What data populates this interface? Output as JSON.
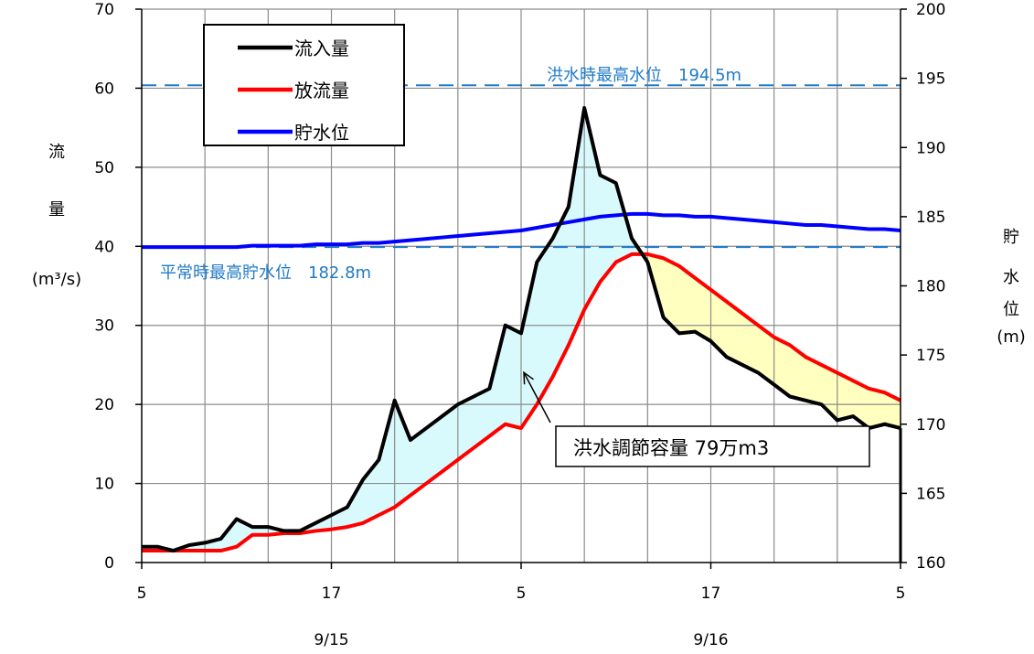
{
  "chart_data": {
    "type": "line",
    "x": [
      5,
      6,
      7,
      8,
      9,
      10,
      11,
      12,
      13,
      14,
      15,
      16,
      17,
      18,
      19,
      20,
      21,
      22,
      23,
      24,
      25,
      26,
      27,
      28,
      29,
      30,
      31,
      32,
      33,
      34,
      35,
      36,
      37,
      38,
      39,
      40,
      41,
      42,
      43,
      44,
      45,
      46,
      47,
      48,
      49,
      50,
      51,
      52,
      53
    ],
    "x_ticks": [
      5,
      17,
      29,
      41,
      53
    ],
    "x_tick_labels": [
      "5",
      "17",
      "5",
      "17",
      "5"
    ],
    "date_labels": [
      {
        "x": 17,
        "label": "9/15"
      },
      {
        "x": 41,
        "label": "9/16"
      }
    ],
    "xlim": [
      5,
      53
    ],
    "ylabel_left": [
      "流",
      "量",
      "(m³/s)"
    ],
    "ylabel_right": [
      "貯",
      "水",
      "位",
      "(m)"
    ],
    "ylim_left": [
      0,
      70
    ],
    "ylim_right": [
      160,
      200
    ],
    "yticks_left": [
      0,
      10,
      20,
      30,
      40,
      50,
      60,
      70
    ],
    "yticks_right": [
      160,
      165,
      170,
      175,
      180,
      185,
      190,
      195,
      200
    ],
    "grid": true,
    "legend_position": "top-left",
    "series": [
      {
        "name": "流入量",
        "axis": "left",
        "color": "#000000",
        "values": [
          2.0,
          2.0,
          1.5,
          2.2,
          2.5,
          3.0,
          5.5,
          4.5,
          4.5,
          4.0,
          4.0,
          5.0,
          6.0,
          7.0,
          10.5,
          13.0,
          20.5,
          15.5,
          17.0,
          18.5,
          20.0,
          21.0,
          22.0,
          30.0,
          29.0,
          38.0,
          41.0,
          45.0,
          57.5,
          49.0,
          48.0,
          41.0,
          38.0,
          31.0,
          29.0,
          29.2,
          28.0,
          26.0,
          25.0,
          24.0,
          22.5,
          21.0,
          20.5,
          20.0,
          18.0,
          18.5,
          17.0,
          17.5,
          17.0
        ]
      },
      {
        "name": "放流量",
        "axis": "left",
        "color": "#ff0000",
        "values": [
          1.5,
          1.5,
          1.5,
          1.5,
          1.5,
          1.5,
          2.0,
          3.5,
          3.5,
          3.7,
          3.7,
          4.0,
          4.2,
          4.5,
          5.0,
          6.0,
          7.0,
          8.5,
          10.0,
          11.5,
          13.0,
          14.5,
          16.0,
          17.5,
          17.0,
          20.0,
          23.5,
          27.5,
          32.0,
          35.5,
          38.0,
          39.0,
          39.0,
          38.5,
          37.5,
          36.0,
          34.5,
          33.0,
          31.5,
          30.0,
          28.5,
          27.5,
          26.0,
          25.0,
          24.0,
          23.0,
          22.0,
          21.5,
          20.5
        ]
      },
      {
        "name": "貯水位",
        "axis": "right",
        "color": "#0000ff",
        "values": [
          182.8,
          182.8,
          182.8,
          182.8,
          182.8,
          182.8,
          182.8,
          182.9,
          182.9,
          182.9,
          182.9,
          183.0,
          183.0,
          183.0,
          183.1,
          183.1,
          183.2,
          183.3,
          183.4,
          183.5,
          183.6,
          183.7,
          183.8,
          183.9,
          184.0,
          184.2,
          184.4,
          184.6,
          184.8,
          185.0,
          185.1,
          185.2,
          185.2,
          185.1,
          185.1,
          185.0,
          185.0,
          184.9,
          184.8,
          184.7,
          184.6,
          184.5,
          184.4,
          184.4,
          184.3,
          184.2,
          184.1,
          184.1,
          184.0
        ]
      }
    ],
    "reference_lines": [
      {
        "axis": "right",
        "value": 194.5,
        "label": "洪水時最高水位　194.5m",
        "color": "#1f7ac8"
      },
      {
        "axis": "right",
        "value": 182.8,
        "label": "平常時最高貯水位　182.8m",
        "color": "#1f7ac8"
      }
    ],
    "annotation": {
      "text": "洪水調節容量 79万m3",
      "point_x": 29,
      "point_y": 24.5
    }
  }
}
